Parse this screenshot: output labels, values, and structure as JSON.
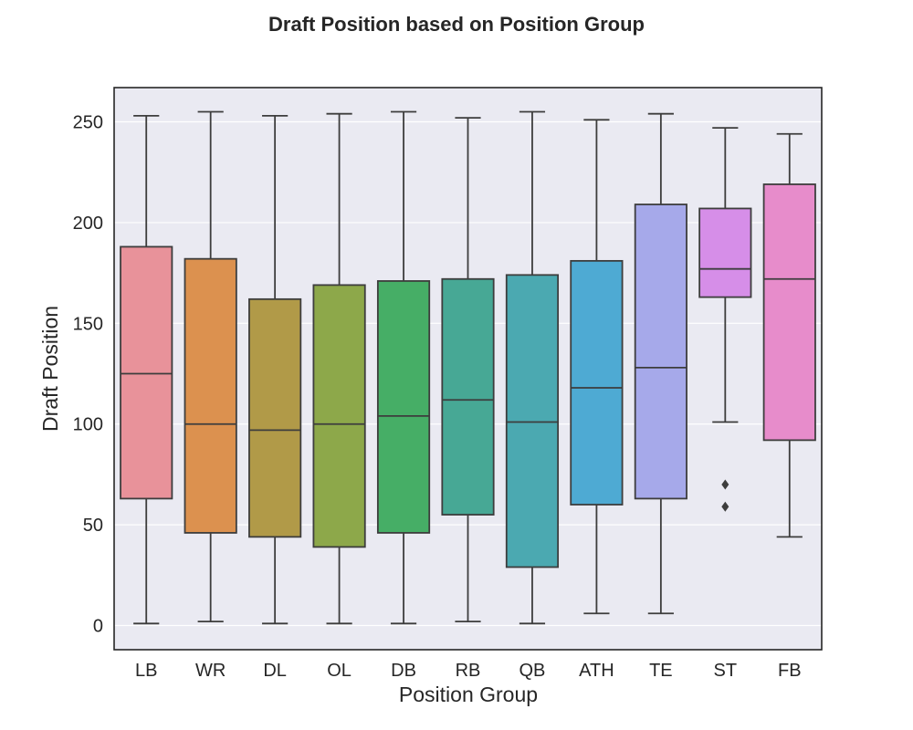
{
  "chart_data": {
    "type": "box",
    "title": "Draft Position based on Position Group",
    "xlabel": "Position Group",
    "ylabel": "Draft Position",
    "ylim": [
      -12,
      267
    ],
    "yticks": [
      0,
      50,
      100,
      150,
      200,
      250
    ],
    "grid": true,
    "categories": [
      "LB",
      "WR",
      "DL",
      "OL",
      "DB",
      "RB",
      "QB",
      "ATH",
      "TE",
      "ST",
      "FB"
    ],
    "series": [
      {
        "category": "LB",
        "color": "#e8929a",
        "whisker_low": 1,
        "q1": 63,
        "median": 125,
        "q3": 188,
        "whisker_high": 253,
        "outliers": []
      },
      {
        "category": "WR",
        "color": "#dc914f",
        "whisker_low": 2,
        "q1": 46,
        "median": 100,
        "q3": 182,
        "whisker_high": 255,
        "outliers": []
      },
      {
        "category": "DL",
        "color": "#b19a48",
        "whisker_low": 1,
        "q1": 44,
        "median": 97,
        "q3": 162,
        "whisker_high": 253,
        "outliers": []
      },
      {
        "category": "OL",
        "color": "#8da84a",
        "whisker_low": 1,
        "q1": 39,
        "median": 100,
        "q3": 169,
        "whisker_high": 254,
        "outliers": []
      },
      {
        "category": "DB",
        "color": "#46ae66",
        "whisker_low": 1,
        "q1": 46,
        "median": 104,
        "q3": 171,
        "whisker_high": 255,
        "outliers": []
      },
      {
        "category": "RB",
        "color": "#47a895",
        "whisker_low": 2,
        "q1": 55,
        "median": 112,
        "q3": 172,
        "whisker_high": 252,
        "outliers": []
      },
      {
        "category": "QB",
        "color": "#4ba9b1",
        "whisker_low": 1,
        "q1": 29,
        "median": 101,
        "q3": 174,
        "whisker_high": 255,
        "outliers": []
      },
      {
        "category": "ATH",
        "color": "#4eaad3",
        "whisker_low": 6,
        "q1": 60,
        "median": 118,
        "q3": 181,
        "whisker_high": 251,
        "outliers": []
      },
      {
        "category": "TE",
        "color": "#a6a9ea",
        "whisker_low": 6,
        "q1": 63,
        "median": 128,
        "q3": 209,
        "whisker_high": 254,
        "outliers": []
      },
      {
        "category": "ST",
        "color": "#d68ee8",
        "whisker_low": 101,
        "q1": 163,
        "median": 177,
        "q3": 207,
        "whisker_high": 247,
        "outliers": [
          70,
          59
        ]
      },
      {
        "category": "FB",
        "color": "#e78ccb",
        "whisker_low": 44,
        "q1": 92,
        "median": 172,
        "q3": 219,
        "whisker_high": 244,
        "outliers": []
      }
    ]
  }
}
